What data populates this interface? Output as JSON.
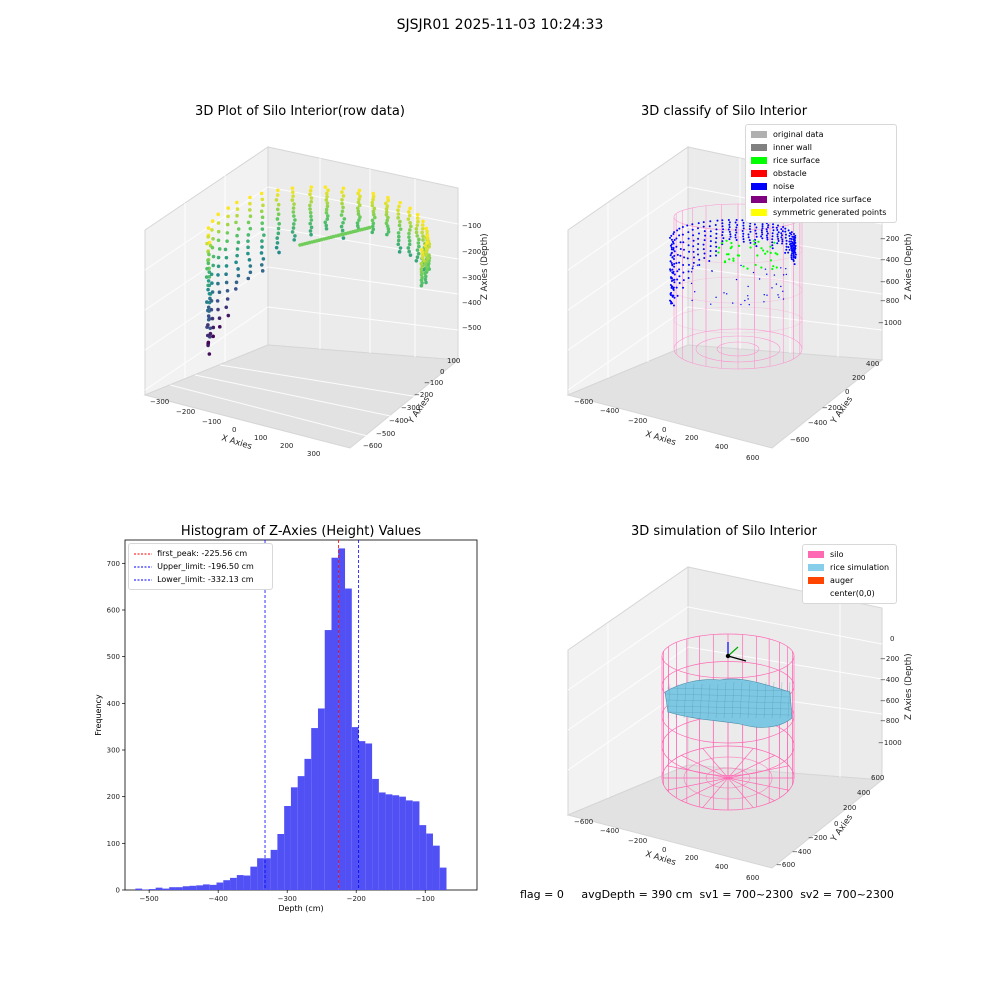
{
  "suptitle": "SJSJR01 2025-11-03 10:24:33",
  "footer": "flag = 0     avgDepth = 390 cm  sv1 = 700~2300  sv2 = 700~2300",
  "chart_data": [
    {
      "type": "scatter",
      "title": "3D Plot of Silo Interior(row data)",
      "xlabel": "X Axies",
      "ylabel": "Y Axies",
      "zlabel": "Z Axies (Depth)",
      "x_ticks": [
        "−300",
        "−200",
        "−100",
        "0",
        "100",
        "200",
        "300"
      ],
      "y_ticks": [
        "−600",
        "−500",
        "−400",
        "−300",
        "−200",
        "−100",
        "0",
        "100"
      ],
      "z_ticks": [
        "−100",
        "−200",
        "−300",
        "−400",
        "−500"
      ],
      "colormap": "viridis"
    },
    {
      "type": "scatter",
      "title": "3D classify of Silo Interior",
      "xlabel": "X Axies",
      "ylabel": "Y Axies",
      "zlabel": "Z Axies (Depth)",
      "x_ticks": [
        "−600",
        "−400",
        "−200",
        "0",
        "200",
        "400",
        "600"
      ],
      "y_ticks": [
        "−600",
        "−400",
        "−200",
        "0",
        "200",
        "400"
      ],
      "z_ticks": [
        "−200",
        "−400",
        "−600",
        "−800",
        "−1000"
      ],
      "legend": [
        {
          "label": "original data",
          "color": "#b0b0b0"
        },
        {
          "label": "inner wall",
          "color": "#808080"
        },
        {
          "label": "rice surface",
          "color": "#00ff00"
        },
        {
          "label": "obstacle",
          "color": "#ff0000"
        },
        {
          "label": "noise",
          "color": "#0000ff"
        },
        {
          "label": "interpolated rice surface",
          "color": "#800080"
        },
        {
          "label": "symmetric generated points",
          "color": "#ffff00"
        }
      ]
    },
    {
      "type": "bar",
      "title": "Histogram of Z-Axies (Height) Values",
      "xlabel": "Depth (cm)",
      "ylabel": "Frequency",
      "xlim": [
        -535,
        -25
      ],
      "ylim": [
        0,
        750
      ],
      "x_ticks": [
        -500,
        -400,
        -300,
        -200,
        -100
      ],
      "y_ticks": [
        0,
        100,
        200,
        300,
        400,
        500,
        600,
        700
      ],
      "bin_start": -520,
      "bin_width": 9.8,
      "values": [
        3,
        1,
        2,
        5,
        3,
        6,
        6,
        8,
        9,
        10,
        12,
        11,
        16,
        21,
        26,
        32,
        31,
        50,
        68,
        68,
        86,
        120,
        180,
        220,
        244,
        281,
        347,
        389,
        557,
        712,
        732,
        646,
        349,
        319,
        314,
        238,
        209,
        205,
        203,
        200,
        192,
        190,
        139,
        121,
        95,
        48
      ],
      "bar_color": "#5050f5",
      "vlines": [
        {
          "label": "first_peak: -225.56 cm",
          "x": -225.56,
          "color": "#ff0000"
        },
        {
          "label": "Upper_limit: -196.50 cm",
          "x": -196.5,
          "color": "#0000ff"
        },
        {
          "label": "Lower_limit: -332.13 cm",
          "x": -332.13,
          "color": "#0000ff"
        }
      ]
    },
    {
      "type": "surface",
      "title": "3D simulation of Silo Interior",
      "xlabel": "X Axies",
      "ylabel": "Y Axies",
      "zlabel": "Z Axies (Depth)",
      "x_ticks": [
        "−600",
        "−400",
        "−200",
        "0",
        "200",
        "400",
        "600"
      ],
      "y_ticks": [
        "−600",
        "−400",
        "−200",
        "0",
        "200",
        "400",
        "600"
      ],
      "z_ticks": [
        "0",
        "−200",
        "−400",
        "−600",
        "−800",
        "−1000"
      ],
      "legend": [
        {
          "label": "silo",
          "color": "#ff69b4"
        },
        {
          "label": "rice simulation",
          "color": "#87ceeb"
        },
        {
          "label": "auger",
          "color": "#ff4500"
        },
        {
          "label": "center(0,0)",
          "color": ""
        }
      ]
    }
  ]
}
